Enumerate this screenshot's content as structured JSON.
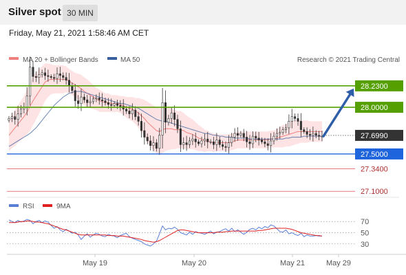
{
  "header": {
    "title": "Silver spot",
    "timeframe": "30 MIN",
    "datetime": "Friday, May 21, 2021 1:58:46 AM CET"
  },
  "legend": {
    "ma20": "MA 20 + Bollinger Bands",
    "ma50": "MA 50",
    "copyright": "Research © 2021 Trading Central",
    "rsi": "RSI",
    "rsi_ma": "9MA"
  },
  "colors": {
    "ma20": "#f08080",
    "ma50": "#3a5f9e",
    "band_fill": "#fde3e3",
    "resistance": "#55a000",
    "support": "#1e64dc",
    "target": "#e05050",
    "arrow": "#2f5ea8",
    "current": "#333333",
    "rsi": "#5b7fd6",
    "rsi_ma": "#e02020"
  },
  "chart_data": {
    "type": "candlestick",
    "y_range": [
      27.05,
      28.45
    ],
    "x_labels": [
      "May 19",
      "May 20",
      "May 21",
      "May 29"
    ],
    "levels": [
      {
        "name": "resistance-2",
        "value": 28.23,
        "label": "28.2300",
        "kind": "resistance"
      },
      {
        "name": "resistance-1",
        "value": 28.0,
        "label": "28.0000",
        "kind": "resistance"
      },
      {
        "name": "current",
        "value": 27.699,
        "label": "27.6990",
        "kind": "current"
      },
      {
        "name": "support-1",
        "value": 27.5,
        "label": "27.5000",
        "kind": "support"
      },
      {
        "name": "target-1",
        "value": 27.34,
        "label": "27.3400",
        "kind": "target"
      },
      {
        "name": "target-2",
        "value": 27.1,
        "label": "27.1000",
        "kind": "target"
      }
    ],
    "projection": {
      "from": 27.69,
      "to": 28.2
    },
    "price_close": [
      27.88,
      27.9,
      27.87,
      27.93,
      27.98,
      28.0,
      28.12,
      28.43,
      28.33,
      28.32,
      28.35,
      28.37,
      28.34,
      28.33,
      28.32,
      28.31,
      28.36,
      28.34,
      28.32,
      28.29,
      28.23,
      28.18,
      28.07,
      28.04,
      28.11,
      28.08,
      28.05,
      28.06,
      28.09,
      28.1,
      28.08,
      28.07,
      28.05,
      28.03,
      28.02,
      28.04,
      28.02,
      28.01,
      27.98,
      27.96,
      27.93,
      27.97,
      27.9,
      27.85,
      27.75,
      27.68,
      27.64,
      27.59,
      27.62,
      27.56,
      27.7,
      28.05,
      27.84,
      27.88,
      27.94,
      27.87,
      27.77,
      27.6,
      27.62,
      27.6,
      27.64,
      27.66,
      27.63,
      27.61,
      27.64,
      27.66,
      27.63,
      27.63,
      27.6,
      27.65,
      27.6,
      27.58,
      27.57,
      27.62,
      27.68,
      27.72,
      27.7,
      27.72,
      27.68,
      27.63,
      27.61,
      27.69,
      27.67,
      27.65,
      27.63,
      27.61,
      27.59,
      27.64,
      27.69,
      27.72,
      27.73,
      27.76,
      27.78,
      27.85,
      27.9,
      27.88,
      27.85,
      27.76,
      27.74,
      27.71,
      27.7,
      27.72,
      27.7,
      27.69,
      27.69
    ],
    "ma20": [
      27.7,
      27.74,
      27.78,
      27.82,
      27.86,
      27.9,
      27.95,
      28.01,
      28.07,
      28.12,
      28.17,
      28.22,
      28.27,
      28.29,
      28.3,
      28.3,
      28.3,
      28.3,
      28.3,
      28.3,
      28.28,
      28.26,
      28.24,
      28.22,
      28.2,
      28.17,
      28.15,
      28.13,
      28.11,
      28.09,
      28.07,
      28.06,
      28.05,
      28.05,
      28.04,
      28.04,
      28.04,
      28.03,
      28.02,
      28.0,
      27.99,
      27.98,
      27.96,
      27.94,
      27.91,
      27.88,
      27.84,
      27.81,
      27.78,
      27.75,
      27.74,
      27.76,
      27.77,
      27.77,
      27.77,
      27.76,
      27.76,
      27.76,
      27.75,
      27.73,
      27.72,
      27.71,
      27.69,
      27.67,
      27.66,
      27.64,
      27.64,
      27.63,
      27.62,
      27.62,
      27.62,
      27.62,
      27.62,
      27.62,
      27.63,
      27.64,
      27.65,
      27.65,
      27.65,
      27.65,
      27.65,
      27.65,
      27.65,
      27.65,
      27.65,
      27.65,
      27.65,
      27.66,
      27.66,
      27.67,
      27.68,
      27.69,
      27.7,
      27.71,
      27.72,
      27.73,
      27.74,
      27.74,
      27.74,
      27.74,
      27.74,
      27.74,
      27.74,
      27.74,
      27.74
    ],
    "band_width": [
      0.17,
      0.18,
      0.19,
      0.2,
      0.21,
      0.22,
      0.24,
      0.26,
      0.26,
      0.25,
      0.24,
      0.22,
      0.2,
      0.18,
      0.16,
      0.15,
      0.15,
      0.15,
      0.15,
      0.14,
      0.13,
      0.13,
      0.13,
      0.14,
      0.15,
      0.15,
      0.15,
      0.14,
      0.13,
      0.12,
      0.12,
      0.11,
      0.1,
      0.1,
      0.09,
      0.09,
      0.09,
      0.09,
      0.1,
      0.11,
      0.12,
      0.13,
      0.14,
      0.16,
      0.18,
      0.2,
      0.22,
      0.23,
      0.24,
      0.25,
      0.25,
      0.25,
      0.24,
      0.23,
      0.22,
      0.21,
      0.2,
      0.2,
      0.19,
      0.18,
      0.17,
      0.16,
      0.15,
      0.14,
      0.13,
      0.12,
      0.11,
      0.1,
      0.1,
      0.09,
      0.09,
      0.09,
      0.09,
      0.09,
      0.09,
      0.09,
      0.09,
      0.09,
      0.09,
      0.09,
      0.09,
      0.09,
      0.09,
      0.09,
      0.09,
      0.09,
      0.09,
      0.09,
      0.09,
      0.1,
      0.11,
      0.12,
      0.12,
      0.13,
      0.13,
      0.13,
      0.13,
      0.12,
      0.12,
      0.12,
      0.11,
      0.11,
      0.11,
      0.11,
      0.11
    ],
    "ma50": [
      27.58,
      27.6,
      27.62,
      27.64,
      27.66,
      27.68,
      27.7,
      27.72,
      27.75,
      27.78,
      27.82,
      27.86,
      27.9,
      27.94,
      27.98,
      28.02,
      28.05,
      28.08,
      28.11,
      28.13,
      28.15,
      28.16,
      28.17,
      28.17,
      28.17,
      28.16,
      28.15,
      28.14,
      28.13,
      28.12,
      28.11,
      28.1,
      28.09,
      28.08,
      28.07,
      28.06,
      28.05,
      28.04,
      28.04,
      28.03,
      28.02,
      28.01,
      28.0,
      27.99,
      27.97,
      27.95,
      27.93,
      27.91,
      27.89,
      27.87,
      27.86,
      27.85,
      27.85,
      27.84,
      27.83,
      27.82,
      27.81,
      27.8,
      27.79,
      27.78,
      27.77,
      27.76,
      27.75,
      27.74,
      27.73,
      27.72,
      27.72,
      27.71,
      27.7,
      27.7,
      27.69,
      27.69,
      27.68,
      27.68,
      27.68,
      27.67,
      27.67,
      27.67,
      27.67,
      27.67,
      27.66,
      27.66,
      27.66,
      27.66,
      27.66,
      27.66,
      27.66,
      27.66,
      27.66,
      27.66,
      27.66,
      27.66,
      27.67,
      27.67,
      27.68,
      27.68,
      27.68,
      27.68,
      27.69,
      27.69,
      27.69,
      27.69,
      27.69,
      27.69,
      27.69
    ],
    "rsi": {
      "y_range": [
        15,
        85
      ],
      "levels": [
        {
          "value": 70,
          "label": "70"
        },
        {
          "value": 50,
          "label": "50"
        },
        {
          "value": 30,
          "label": "30"
        }
      ],
      "rsi": [
        73,
        70,
        68,
        72,
        69,
        71,
        74,
        72,
        66,
        70,
        72,
        68,
        71,
        69,
        63,
        58,
        61,
        55,
        52,
        56,
        53,
        49,
        51,
        46,
        38,
        44,
        48,
        42,
        46,
        49,
        47,
        44,
        43,
        47,
        45,
        44,
        41,
        45,
        47,
        49,
        43,
        40,
        38,
        36,
        34,
        30,
        28,
        26,
        30,
        35,
        48,
        62,
        55,
        58,
        57,
        60,
        56,
        50,
        48,
        46,
        51,
        47,
        52,
        50,
        49,
        47,
        50,
        53,
        48,
        51,
        52,
        55,
        57,
        53,
        58,
        52,
        55,
        51,
        47,
        51,
        56,
        58,
        55,
        60,
        57,
        61,
        59,
        64,
        62,
        57,
        52,
        51,
        55,
        48,
        50,
        47,
        45,
        49,
        43,
        46,
        44,
        44,
        45,
        44,
        44
      ],
      "ma9": [
        68,
        68,
        68,
        69,
        70,
        70,
        71,
        71,
        70,
        69,
        69,
        68,
        67,
        66,
        64,
        62,
        60,
        58,
        56,
        55,
        53,
        51,
        49,
        47,
        46,
        46,
        46,
        46,
        46,
        46,
        46,
        46,
        46,
        45,
        45,
        45,
        44,
        44,
        44,
        43,
        42,
        41,
        40,
        39,
        38,
        36,
        35,
        34,
        33,
        34,
        36,
        39,
        42,
        45,
        48,
        51,
        54,
        55,
        55,
        54,
        53,
        52,
        51,
        50,
        50,
        50,
        50,
        50,
        50,
        51,
        51,
        51,
        52,
        52,
        53,
        53,
        53,
        53,
        53,
        53,
        53,
        53,
        53,
        54,
        54,
        55,
        56,
        57,
        58,
        58,
        58,
        58,
        58,
        57,
        56,
        54,
        52,
        50,
        49,
        48,
        47,
        46,
        45,
        45,
        44
      ]
    }
  }
}
